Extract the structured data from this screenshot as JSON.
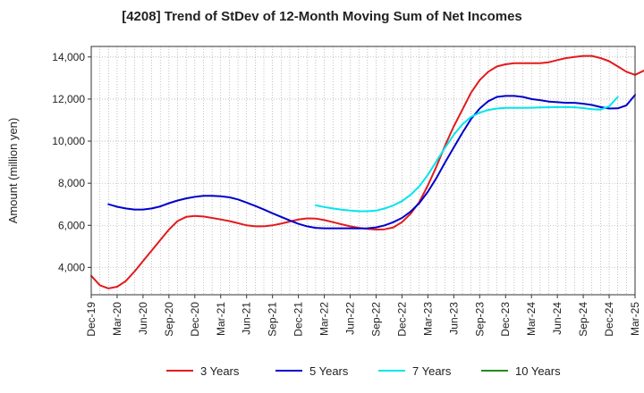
{
  "chart_data": {
    "type": "line",
    "title": "[4208]  Trend of StDev of 12-Month Moving Sum of Net Incomes",
    "ylabel": "Amount (million yen)",
    "xlabel": "",
    "ylim": [
      2700,
      14500
    ],
    "y_ticks": [
      4000,
      6000,
      8000,
      10000,
      12000,
      14000
    ],
    "y_tick_labels": [
      "4,000",
      "6,000",
      "8,000",
      "10,000",
      "12,000",
      "14,000"
    ],
    "x_tick_labels": [
      "Dec-19",
      "Mar-20",
      "Jun-20",
      "Sep-20",
      "Dec-20",
      "Mar-21",
      "Jun-21",
      "Sep-21",
      "Dec-21",
      "Mar-22",
      "Jun-22",
      "Sep-22",
      "Dec-22",
      "Mar-23",
      "Jun-23",
      "Sep-23",
      "Dec-23",
      "Mar-24",
      "Jun-24",
      "Sep-24",
      "Dec-24",
      "Mar-25"
    ],
    "grid": true,
    "legend_position": "bottom",
    "series": [
      {
        "name": "3 Years",
        "color": "#e31a1c",
        "start": "2019-12",
        "values": [
          3600,
          3150,
          3000,
          3080,
          3350,
          3800,
          4300,
          4800,
          5300,
          5800,
          6200,
          6400,
          6450,
          6420,
          6350,
          6280,
          6200,
          6100,
          6000,
          5950,
          5950,
          6000,
          6080,
          6180,
          6280,
          6330,
          6320,
          6250,
          6150,
          6050,
          5950,
          5880,
          5830,
          5800,
          5810,
          5900,
          6150,
          6550,
          7100,
          7900,
          8800,
          9800,
          10700,
          11500,
          12300,
          12900,
          13300,
          13550,
          13650,
          13700,
          13700,
          13700,
          13700,
          13750,
          13850,
          13950,
          14000,
          14050,
          14050,
          13950,
          13800,
          13550,
          13300,
          13150,
          13350
        ]
      },
      {
        "name": "5 Years",
        "color": "#0000cc",
        "start": "2020-02",
        "values": [
          7000,
          6880,
          6800,
          6750,
          6750,
          6800,
          6900,
          7050,
          7180,
          7280,
          7350,
          7400,
          7400,
          7380,
          7330,
          7230,
          7080,
          6920,
          6750,
          6570,
          6400,
          6230,
          6070,
          5950,
          5880,
          5860,
          5860,
          5860,
          5860,
          5850,
          5860,
          5900,
          6000,
          6150,
          6350,
          6650,
          7050,
          7600,
          8250,
          9000,
          9700,
          10400,
          11050,
          11550,
          11900,
          12100,
          12150,
          12150,
          12100,
          12000,
          11950,
          11880,
          11850,
          11820,
          11820,
          11780,
          11720,
          11620,
          11550,
          11560,
          11700,
          12200
        ]
      },
      {
        "name": "7 Years",
        "color": "#00e5ee",
        "start": "2022-02",
        "values": [
          6950,
          6870,
          6800,
          6740,
          6700,
          6670,
          6670,
          6700,
          6800,
          6950,
          7150,
          7450,
          7850,
          8400,
          9050,
          9700,
          10300,
          10800,
          11150,
          11350,
          11480,
          11550,
          11580,
          11580,
          11580,
          11590,
          11600,
          11610,
          11620,
          11620,
          11610,
          11570,
          11520,
          11500,
          11650,
          12100
        ]
      },
      {
        "name": "10 Years",
        "color": "#228b22",
        "start": "",
        "values": []
      }
    ]
  }
}
